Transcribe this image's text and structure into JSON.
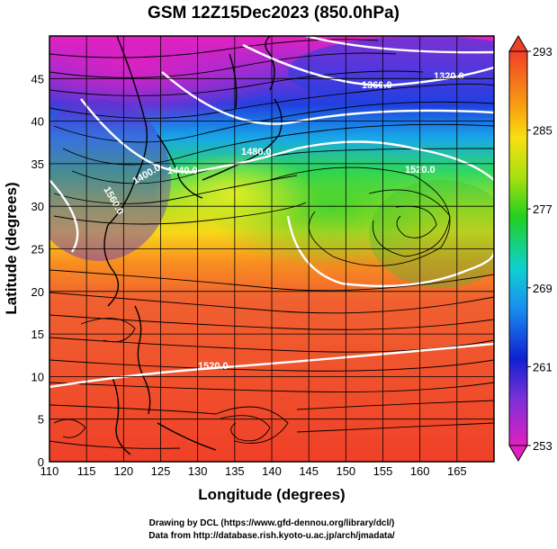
{
  "title": "GSM 12Z15Dec2023 (850.0hPa)",
  "x_axis": {
    "label": "Longitude (degrees)",
    "range": [
      110,
      170
    ],
    "ticks": [
      "110",
      "115",
      "120",
      "125",
      "130",
      "135",
      "140",
      "145",
      "150",
      "155",
      "160",
      "165"
    ],
    "grid": true
  },
  "y_axis": {
    "label": "Latitude  (degrees)",
    "range": [
      0,
      50
    ],
    "ticks": [
      "0",
      "5",
      "10",
      "15",
      "20",
      "25",
      "30",
      "35",
      "40",
      "45"
    ],
    "grid": true
  },
  "colorbar": {
    "range": [
      253,
      293
    ],
    "ticks": [
      "293",
      "285",
      "277",
      "269",
      "261",
      "253"
    ]
  },
  "contour_labels": [
    "1320.0",
    "1360.0",
    "1480.0",
    "1520.0",
    "1560.0",
    "1440.0",
    "1400.0"
  ],
  "footer": {
    "line1": "Drawing by DCL (https://www.gfd-dennou.org/library/dcl/)",
    "line2": "Data from http://database.rish.kyoto-u.ac.jp/arch/jmadata/"
  },
  "colors": {
    "warm": "#f04028",
    "cold": "#e020c0",
    "contour": "#ffffff"
  }
}
